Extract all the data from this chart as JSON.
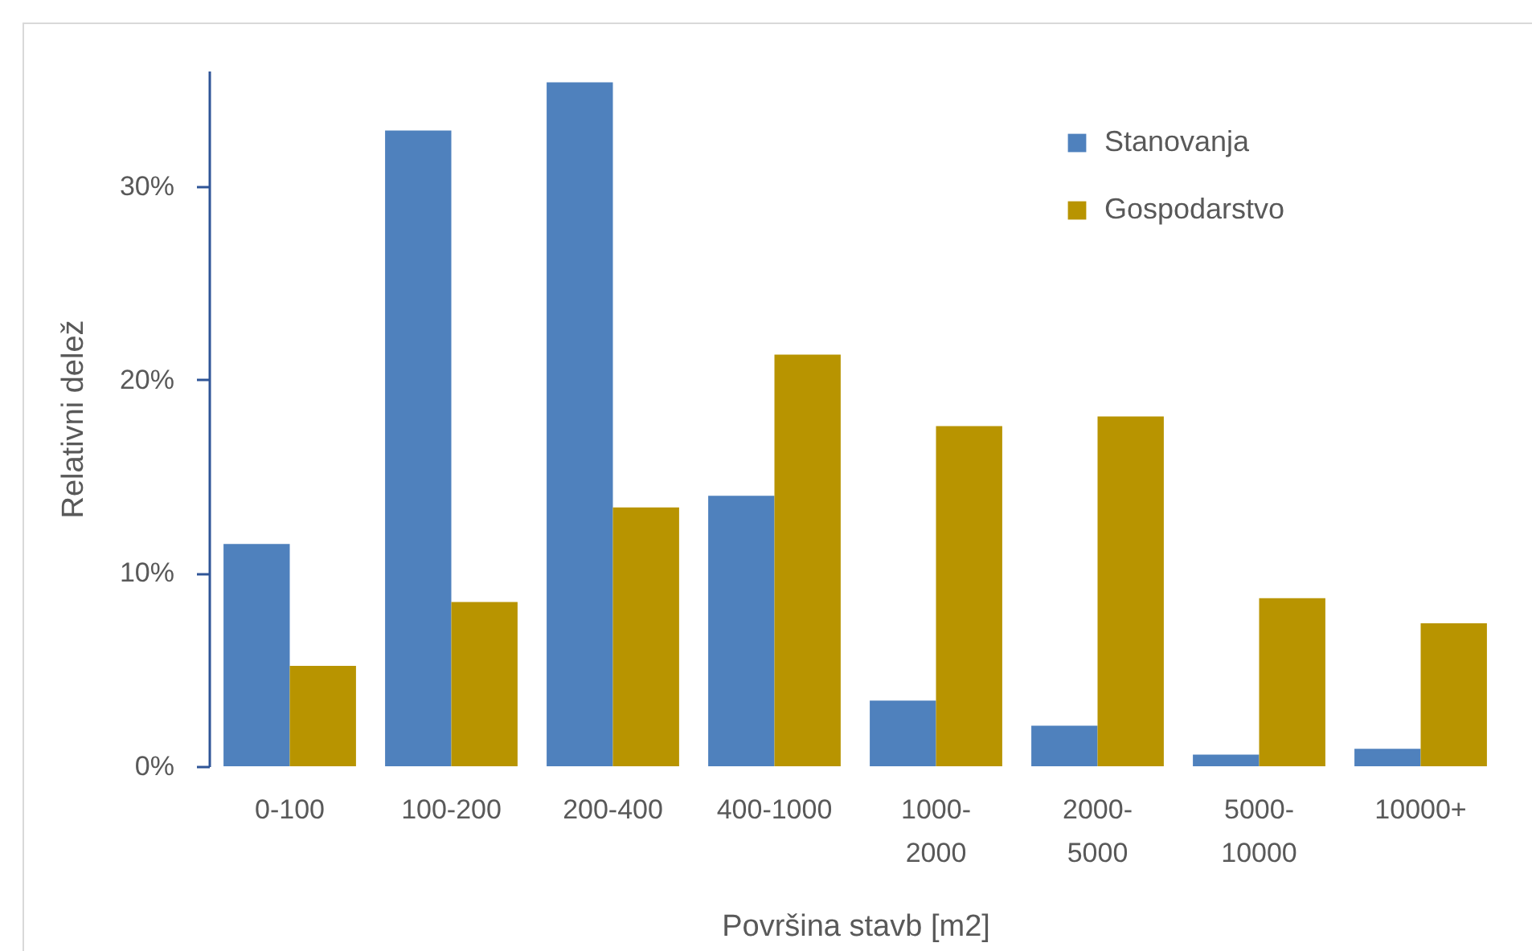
{
  "chart_data": {
    "type": "bar",
    "xlabel": "Površina stavb [m2]",
    "ylabel": "Relativni delež",
    "categories": [
      "0-100",
      "100-200",
      "200-400",
      "400-1000",
      "1000-2000",
      "2000-5000",
      "5000-10000",
      "10000+"
    ],
    "series": [
      {
        "name": "Stanovanja",
        "color": "#4f81bd",
        "values": [
          11.5,
          32.9,
          35.4,
          14.0,
          3.4,
          2.1,
          0.6,
          0.9
        ]
      },
      {
        "name": "Gospodarstvo",
        "color": "#b89400",
        "values": [
          5.2,
          8.5,
          13.4,
          21.3,
          17.6,
          18.1,
          8.7,
          7.4
        ]
      }
    ],
    "ylim": [
      0,
      36
    ],
    "yticks": [
      {
        "value": 0,
        "label": "0%"
      },
      {
        "value": 10,
        "label": "10%"
      },
      {
        "value": 20,
        "label": "20%"
      },
      {
        "value": 30,
        "label": "30%"
      }
    ],
    "legend": "top right"
  }
}
